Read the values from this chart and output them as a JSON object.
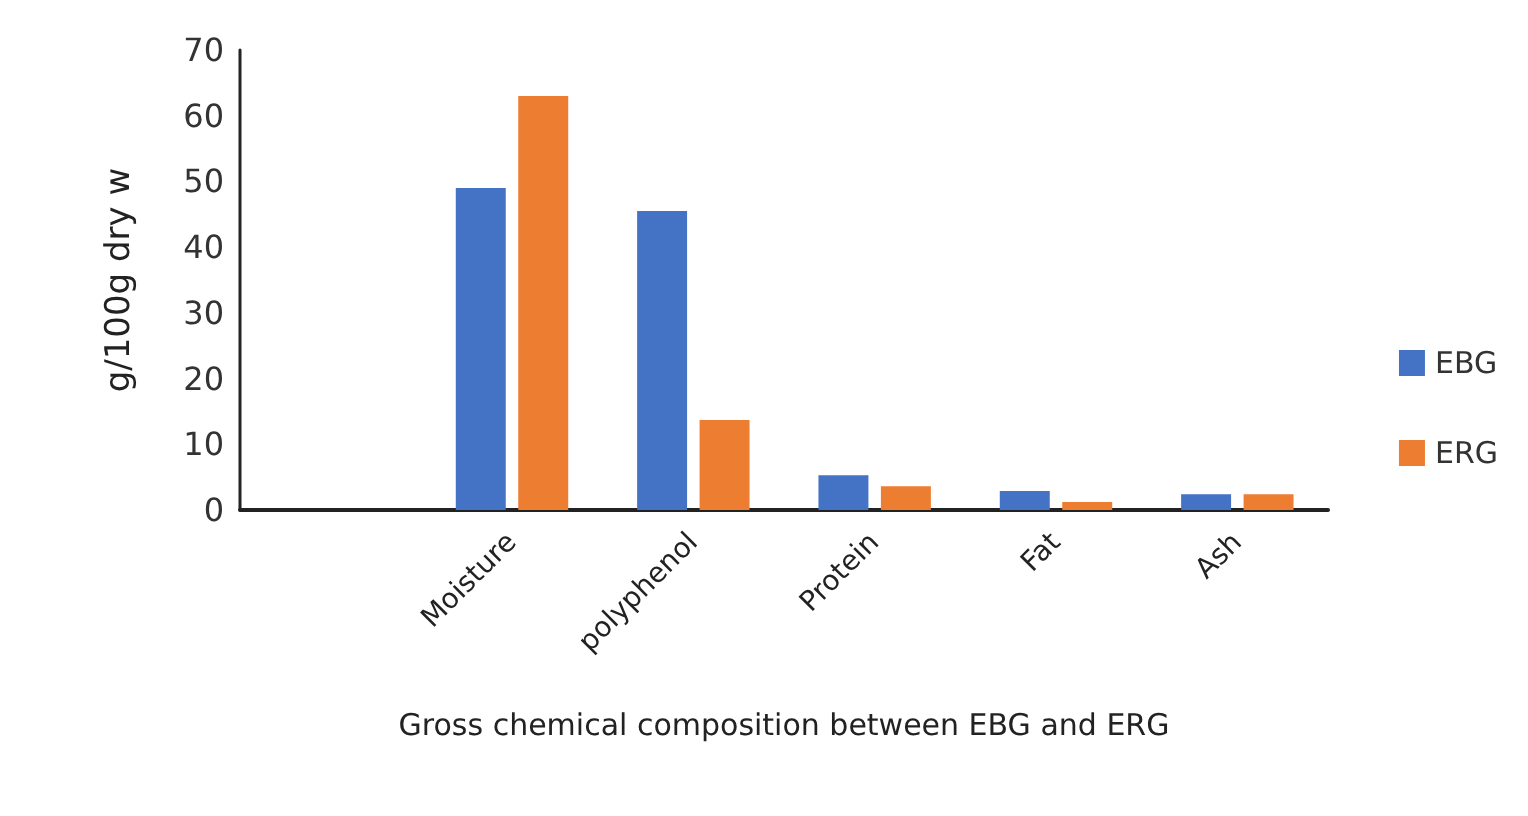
{
  "chart_data": {
    "type": "bar",
    "xlabel": "Gross chemical composition between EBG and ERG",
    "ylabel": "g/100g dry w",
    "categories": [
      null,
      "Moisture",
      "polyphenol",
      "Protein",
      "Fat",
      "Ash"
    ],
    "series": [
      {
        "name": "EBG",
        "color": "#4472c4",
        "values": [
          null,
          49,
          45.5,
          5.3,
          2.9,
          2.4
        ]
      },
      {
        "name": "ERG",
        "color": "#ed7d31",
        "values": [
          null,
          63,
          13.7,
          3.6,
          1.2,
          2.4
        ]
      }
    ],
    "ylim": [
      0,
      70
    ],
    "yticks": [
      0,
      10,
      20,
      30,
      40,
      50,
      60,
      70
    ],
    "grid": false,
    "legend": "right"
  }
}
